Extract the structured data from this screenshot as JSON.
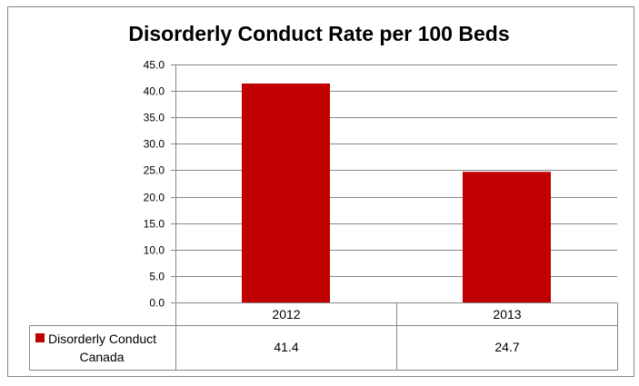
{
  "chart_data": {
    "type": "bar",
    "title": "Disorderly Conduct Rate per 100 Beds",
    "xlabel": "",
    "ylabel": "",
    "categories": [
      "2012",
      "2013"
    ],
    "series": [
      {
        "name": "Disorderly Conduct Canada",
        "values": [
          41.4,
          24.7
        ],
        "value_labels": [
          "41.4",
          "24.7"
        ],
        "color": "#C00000"
      }
    ],
    "ylim": [
      0,
      45
    ],
    "yticks": [
      "0.0",
      "5.0",
      "10.0",
      "15.0",
      "20.0",
      "25.0",
      "30.0",
      "35.0",
      "40.0",
      "45.0"
    ],
    "grid": true,
    "legend": "data-table"
  },
  "legend_label_lines": [
    "Disorderly Conduct",
    "Canada"
  ]
}
